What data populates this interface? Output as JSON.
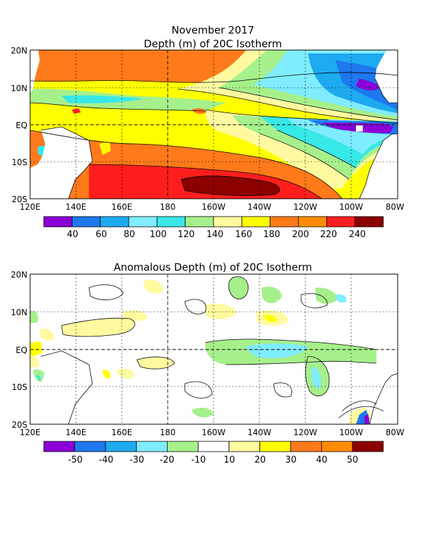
{
  "top_panel": {
    "title_line1": "November 2017",
    "title_line2": "Depth (m) of 20C Isotherm",
    "lat_labels": [
      "20N",
      "10N",
      "EQ",
      "10S",
      "20S"
    ],
    "lon_labels": [
      "120E",
      "140E",
      "160E",
      "180",
      "160W",
      "140W",
      "120W",
      "100W",
      "80W"
    ],
    "colorbar": {
      "labels": [
        "40",
        "60",
        "80",
        "100",
        "120",
        "140",
        "160",
        "180",
        "200",
        "220",
        "240"
      ],
      "colors": [
        "#8a00d6",
        "#1e78f0",
        "#1eaaf0",
        "#80ecff",
        "#38e8e8",
        "#a6f08c",
        "#fffaa0",
        "#ffff00",
        "#ff7a1a",
        "#ff8c00",
        "#ff1e1e",
        "#8c0000"
      ]
    }
  },
  "bottom_panel": {
    "title": "Anomalous Depth (m) of 20C Isotherm",
    "lat_labels": [
      "20N",
      "10N",
      "EQ",
      "10S",
      "20S"
    ],
    "lon_labels": [
      "120E",
      "140E",
      "160E",
      "180",
      "160W",
      "140W",
      "120W",
      "100W",
      "80W"
    ],
    "colorbar": {
      "labels": [
        "-50",
        "-40",
        "-30",
        "-20",
        "-10",
        "10",
        "20",
        "30",
        "40",
        "50"
      ],
      "colors": [
        "#8a00d6",
        "#1e78f0",
        "#1eaaf0",
        "#80ecff",
        "#a6f08c",
        "#ffffff",
        "#fffaa0",
        "#ffff00",
        "#ff7a1a",
        "#ff8c00",
        "#8c0000"
      ]
    }
  }
}
